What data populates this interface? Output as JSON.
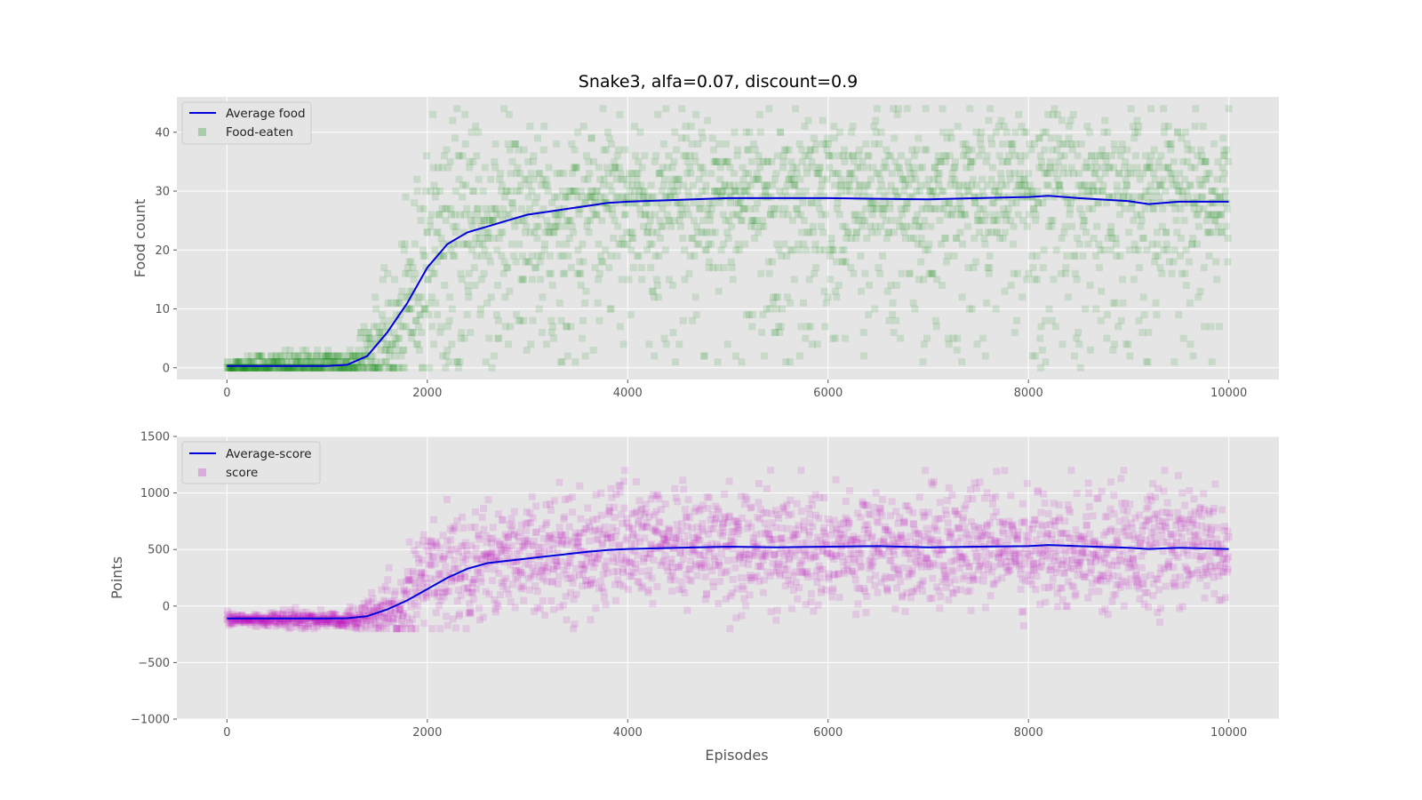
{
  "title": "Snake3, alfa=0.07, discount=0.9",
  "colors": {
    "panel_background": "#e5e5e5",
    "grid": "#ffffff",
    "average_line": "#0000dd",
    "food_points": "#008000",
    "score_points": "#c000c0"
  },
  "chart_data": [
    {
      "type": "scatter",
      "ylabel": "Food count",
      "xlabel": "",
      "xlim": [
        -500,
        10500
      ],
      "ylim": [
        -2,
        46
      ],
      "x_ticks": [
        0,
        2000,
        4000,
        6000,
        8000,
        10000
      ],
      "x_tick_labels": [
        "0",
        "2000",
        "4000",
        "6000",
        "8000",
        "10000"
      ],
      "y_ticks": [
        0,
        10,
        20,
        30,
        40
      ],
      "y_tick_labels": [
        "0",
        "10",
        "20",
        "30",
        "40"
      ],
      "grid": true,
      "legend_position": "top-left",
      "series": [
        {
          "name": "Average food",
          "kind": "line",
          "color": "#0000dd",
          "x": [
            0,
            500,
            1000,
            1200,
            1400,
            1600,
            1800,
            2000,
            2200,
            2400,
            2600,
            2800,
            3000,
            3200,
            3400,
            3600,
            3800,
            4000,
            4500,
            5000,
            5500,
            6000,
            6500,
            7000,
            7500,
            8000,
            8200,
            8500,
            9000,
            9200,
            9500,
            10000
          ],
          "y": [
            0.3,
            0.3,
            0.3,
            0.5,
            2,
            6,
            11,
            17,
            21,
            23,
            24,
            25,
            26,
            26.5,
            27,
            27.5,
            28,
            28.2,
            28.5,
            28.8,
            28.8,
            28.8,
            28.7,
            28.6,
            28.8,
            29,
            29.2,
            28.8,
            28.3,
            27.8,
            28.2,
            28.2
          ]
        },
        {
          "name": "Food-eaten",
          "kind": "scatter",
          "color": "#008000",
          "x_range": [
            0,
            10000
          ],
          "points_per_episode_sample": 2500,
          "profile": [
            {
              "x": 0,
              "center": 0,
              "spread": 0.8
            },
            {
              "x": 1200,
              "center": 0.5,
              "spread": 1.5
            },
            {
              "x": 1700,
              "center": 5,
              "spread": 6
            },
            {
              "x": 2000,
              "center": 20,
              "spread": 10
            },
            {
              "x": 2500,
              "center": 26,
              "spread": 8
            },
            {
              "x": 4000,
              "center": 30,
              "spread": 6
            },
            {
              "x": 10000,
              "center": 31,
              "spread": 6
            }
          ],
          "max_value": 44,
          "min_value": 0
        }
      ]
    },
    {
      "type": "scatter",
      "ylabel": "Points",
      "xlabel": "Episodes",
      "xlim": [
        -500,
        10500
      ],
      "ylim": [
        -1000,
        1500
      ],
      "x_ticks": [
        0,
        2000,
        4000,
        6000,
        8000,
        10000
      ],
      "x_tick_labels": [
        "0",
        "2000",
        "4000",
        "6000",
        "8000",
        "10000"
      ],
      "y_ticks": [
        -1000,
        -500,
        0,
        500,
        1000,
        1500
      ],
      "y_tick_labels": [
        "−1000",
        "−500",
        "0",
        "500",
        "1000",
        "1500"
      ],
      "grid": true,
      "legend_position": "top-left",
      "series": [
        {
          "name": "Average-score",
          "kind": "line",
          "color": "#0000dd",
          "x": [
            0,
            500,
            1000,
            1200,
            1400,
            1600,
            1800,
            2000,
            2200,
            2400,
            2600,
            2800,
            3000,
            3200,
            3400,
            3600,
            3800,
            4000,
            4500,
            5000,
            5500,
            6000,
            6500,
            7000,
            7500,
            8000,
            8200,
            8500,
            9000,
            9200,
            9500,
            10000
          ],
          "y": [
            -110,
            -110,
            -110,
            -108,
            -90,
            -30,
            50,
            150,
            250,
            330,
            380,
            400,
            420,
            440,
            460,
            480,
            495,
            505,
            515,
            525,
            520,
            525,
            530,
            520,
            525,
            530,
            540,
            530,
            515,
            505,
            515,
            505
          ]
        },
        {
          "name": "score",
          "kind": "scatter",
          "color": "#c000c0",
          "x_range": [
            0,
            10000
          ],
          "points_per_episode_sample": 2500,
          "profile": [
            {
              "x": 0,
              "center": -120,
              "spread": 30
            },
            {
              "x": 1200,
              "center": -120,
              "spread": 40
            },
            {
              "x": 1700,
              "center": -60,
              "spread": 120
            },
            {
              "x": 2000,
              "center": 250,
              "spread": 250
            },
            {
              "x": 2500,
              "center": 420,
              "spread": 250
            },
            {
              "x": 4000,
              "center": 520,
              "spread": 250
            },
            {
              "x": 10000,
              "center": 520,
              "spread": 250
            }
          ],
          "max_value": 1200,
          "min_value": -200
        }
      ]
    }
  ]
}
